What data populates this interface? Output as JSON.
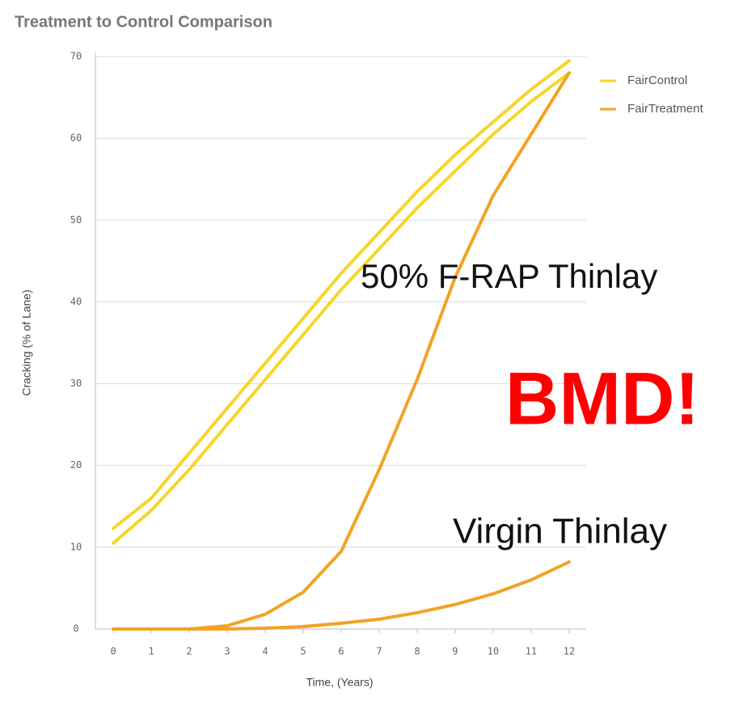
{
  "chart_data": {
    "type": "line",
    "title": "Treatment to Control Comparison",
    "x_label": "Time, (Years)",
    "y_label": "Cracking (% of Lane)",
    "x": [
      0,
      1,
      2,
      3,
      4,
      5,
      6,
      7,
      8,
      9,
      10,
      11,
      12
    ],
    "xlim": [
      -0.47,
      12.45
    ],
    "xticks": [
      0,
      1,
      2,
      3,
      4,
      5,
      6,
      7,
      8,
      9,
      10,
      11,
      12
    ],
    "ylim": [
      0,
      70
    ],
    "yticks": [
      0,
      10,
      20,
      30,
      40,
      50,
      60,
      70
    ],
    "grid": true,
    "legend": "top-right",
    "series": [
      {
        "name": "FairControl",
        "color": "#f7d52a",
        "values": [
          12.3,
          16,
          21.5,
          27,
          32.5,
          38,
          43.5,
          48.5,
          53.5,
          58,
          62,
          66,
          69.5
        ]
      },
      {
        "name": "FairControl",
        "color": "#f7d52a",
        "values": [
          10.5,
          14.5,
          19.5,
          25,
          30.5,
          36,
          41.5,
          46.5,
          51.5,
          56,
          60.5,
          64.5,
          68
        ]
      },
      {
        "name": "FairTreatment",
        "color": "#f2a324",
        "values": [
          0,
          0,
          0,
          0.4,
          1.8,
          4.5,
          9.5,
          19.5,
          30.5,
          43,
          53,
          60.5,
          68
        ]
      },
      {
        "name": "FairTreatment",
        "color": "#f2a324",
        "values": [
          0,
          0,
          0,
          0,
          0.1,
          0.3,
          0.7,
          1.2,
          2,
          3,
          4.3,
          6,
          8.2
        ]
      }
    ],
    "annotations": [
      {
        "text": "50% F-RAP Thinlay",
        "color": "#111111"
      },
      {
        "text": "BMD!",
        "color": "#ff0000"
      },
      {
        "text": "Virgin Thinlay",
        "color": "#111111"
      }
    ]
  }
}
